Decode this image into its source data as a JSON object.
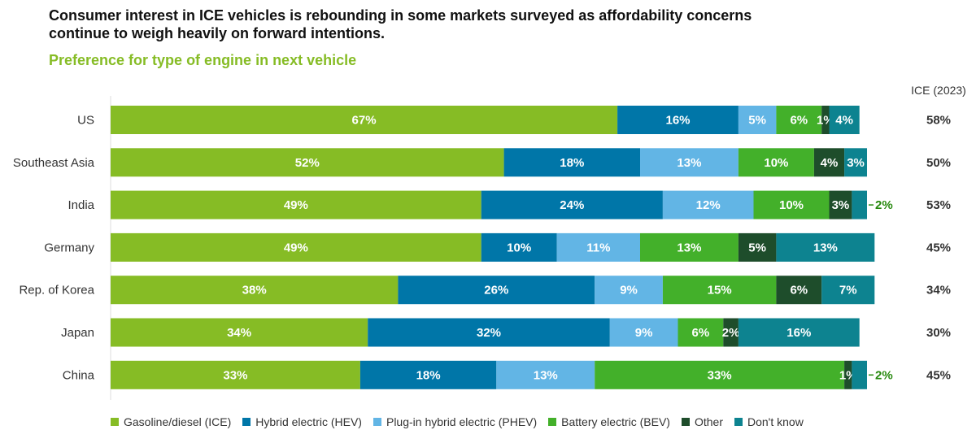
{
  "title": "Consumer interest in ICE vehicles is rebounding in some markets surveyed as affordability concerns continue to weigh heavily on forward intentions.",
  "subtitle": "Preference for type of engine in next vehicle",
  "chart_data": {
    "type": "bar",
    "orientation": "horizontal-stacked-100",
    "categories": [
      "US",
      "Southeast Asia",
      "India",
      "Germany",
      "Rep. of Korea",
      "Japan",
      "China"
    ],
    "series": [
      {
        "name": "Gasoline/diesel (ICE)",
        "color": "#86bc25",
        "values": [
          67,
          52,
          49,
          49,
          38,
          34,
          33
        ],
        "labels": [
          "67%",
          "52%",
          "49%",
          "49%",
          "38%",
          "34%",
          "33%"
        ]
      },
      {
        "name": "Hybrid electric (HEV)",
        "color": "#0076a8",
        "values": [
          16,
          18,
          24,
          10,
          26,
          32,
          18
        ],
        "labels": [
          "16%",
          "18%",
          "24%",
          "10%",
          "26%",
          "32%",
          "18%"
        ]
      },
      {
        "name": "Plug-in hybrid electric (PHEV)",
        "color": "#62b5e5",
        "values": [
          5,
          13,
          12,
          11,
          9,
          9,
          13
        ],
        "labels": [
          "5%",
          "13%",
          "12%",
          "11%",
          "9%",
          "9%",
          "13%"
        ]
      },
      {
        "name": "Battery electric (BEV)",
        "color": "#43b02a",
        "values": [
          6,
          10,
          10,
          13,
          15,
          6,
          33
        ],
        "labels": [
          "6%",
          "10%",
          "10%",
          "13%",
          "15%",
          "6%",
          "33%"
        ]
      },
      {
        "name": "Other",
        "color": "#1e4d2b",
        "values": [
          1,
          4,
          3,
          5,
          6,
          2,
          1
        ],
        "labels": [
          "1%",
          "4%",
          "3%",
          "5%",
          "6%",
          "2%",
          "1%"
        ]
      },
      {
        "name": "Don't know",
        "color": "#0d8390",
        "values": [
          4,
          3,
          2,
          13,
          7,
          16,
          2
        ],
        "labels": [
          "4%",
          "3%",
          "2%",
          "13%",
          "7%",
          "16%",
          "2%"
        ]
      }
    ],
    "outside_labels": [
      null,
      null,
      "2%",
      null,
      null,
      null,
      "2%"
    ],
    "ice_2023_header": "ICE (2023)",
    "ice_2023": [
      "58%",
      "50%",
      "53%",
      "45%",
      "34%",
      "30%",
      "45%"
    ],
    "xlim": [
      0,
      100
    ],
    "legend_position": "bottom"
  }
}
